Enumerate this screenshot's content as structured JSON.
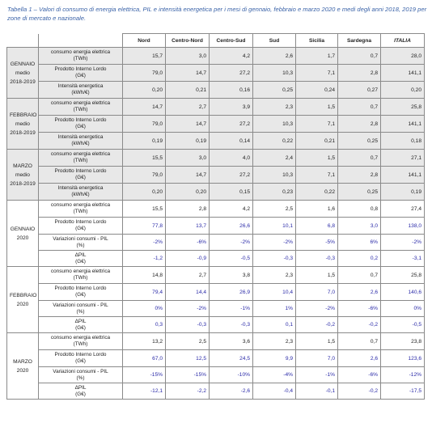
{
  "caption": "Tabella 1 – Valori di consumo di energia elettrica, PIL e intensità energetica per i mesi di gennaio, febbraio e marzo 2020 e medi degli anni 2018, 2019 per zone di mercato e nazionale.",
  "columns": [
    "Nord",
    "Centro-Nord",
    "Centro-Sud",
    "Sud",
    "Sicilia",
    "Sardegna",
    "ITALIA"
  ],
  "avg_blocks": [
    {
      "period": [
        "GENNAIO",
        "medio",
        "2018-2019"
      ],
      "rows": [
        {
          "label": [
            "consumo energia elettrica",
            "(TWh)"
          ],
          "values": [
            "15,7",
            "3,0",
            "4,2",
            "2,6",
            "1,7",
            "0,7",
            "28,0"
          ]
        },
        {
          "label": [
            "Prodotto Interno Lordo",
            "(G€)"
          ],
          "values": [
            "79,0",
            "14,7",
            "27,2",
            "10,3",
            "7,1",
            "2,8",
            "141,1"
          ]
        },
        {
          "label": [
            "Intensità energetica",
            "(kWh/€)"
          ],
          "values": [
            "0,20",
            "0,21",
            "0,16",
            "0,25",
            "0,24",
            "0,27",
            "0,20"
          ]
        }
      ]
    },
    {
      "period": [
        "FEBBRAIO",
        "medio",
        "2018-2019"
      ],
      "rows": [
        {
          "label": [
            "consumo energia elettrica",
            "(TWh)"
          ],
          "values": [
            "14,7",
            "2,7",
            "3,9",
            "2,3",
            "1,5",
            "0,7",
            "25,8"
          ]
        },
        {
          "label": [
            "Prodotto Interno Lordo",
            "(G€)"
          ],
          "values": [
            "79,0",
            "14,7",
            "27,2",
            "10,3",
            "7,1",
            "2,8",
            "141,1"
          ]
        },
        {
          "label": [
            "Intensità energetica",
            "(kWh/€)"
          ],
          "values": [
            "0,19",
            "0,19",
            "0,14",
            "0,22",
            "0,21",
            "0,25",
            "0,18"
          ]
        }
      ]
    },
    {
      "period": [
        "MARZO",
        "medio",
        "2018-2019"
      ],
      "rows": [
        {
          "label": [
            "consumo energia elettrica",
            "(TWh)"
          ],
          "values": [
            "15,5",
            "3,0",
            "4,0",
            "2,4",
            "1,5",
            "0,7",
            "27,1"
          ]
        },
        {
          "label": [
            "Prodotto Interno Lordo",
            "(G€)"
          ],
          "values": [
            "79,0",
            "14,7",
            "27,2",
            "10,3",
            "7,1",
            "2,8",
            "141,1"
          ]
        },
        {
          "label": [
            "Intensità energetica",
            "(kWh/€)"
          ],
          "values": [
            "0,20",
            "0,20",
            "0,15",
            "0,23",
            "0,22",
            "0,25",
            "0,19"
          ]
        }
      ]
    }
  ],
  "month_blocks": [
    {
      "period": [
        "GENNAIO",
        "2020"
      ],
      "rows": [
        {
          "label": [
            "consumo energia elettrica",
            "(TWh)"
          ],
          "values": [
            "15,5",
            "2,8",
            "4,2",
            "2,5",
            "1,6",
            "0,8",
            "27,4"
          ],
          "blue": false
        },
        {
          "label": [
            "Prodotto Interno Lordo",
            "(G€)"
          ],
          "values": [
            "77,8",
            "13,7",
            "26,6",
            "10,1",
            "6,8",
            "3,0",
            "138,0"
          ],
          "blue": true
        },
        {
          "label": [
            "Variazioni consumi - PIL",
            "(%)"
          ],
          "values": [
            "-2%",
            "-6%",
            "-2%",
            "-2%",
            "-5%",
            "6%",
            "-2%"
          ],
          "blue": true
        },
        {
          "label": [
            "ΔPIL",
            "(G€)"
          ],
          "values": [
            "-1,2",
            "-0,9",
            "-0,5",
            "-0,3",
            "-0,3",
            "0,2",
            "-3,1"
          ],
          "blue": true
        }
      ]
    },
    {
      "period": [
        "FEBBRAIO",
        "2020"
      ],
      "rows": [
        {
          "label": [
            "consumo energia elettrica",
            "(TWh)"
          ],
          "values": [
            "14,8",
            "2,7",
            "3,8",
            "2,3",
            "1,5",
            "0,7",
            "25,8"
          ],
          "blue": false
        },
        {
          "label": [
            "Prodotto Interno Lordo",
            "(G€)"
          ],
          "values": [
            "79,4",
            "14,4",
            "26,9",
            "10,4",
            "7,0",
            "2,6",
            "140,6"
          ],
          "blue": true
        },
        {
          "label": [
            "Variazioni consumi - PIL",
            "(%)"
          ],
          "values": [
            "0%",
            "-2%",
            "-1%",
            "1%",
            "-2%",
            "-6%",
            "0%"
          ],
          "blue": true
        },
        {
          "label": [
            "ΔPIL",
            "(G€)"
          ],
          "values": [
            "0,3",
            "-0,3",
            "-0,3",
            "0,1",
            "-0,2",
            "-0,2",
            "-0,5"
          ],
          "blue": true
        }
      ]
    },
    {
      "period": [
        "MARZO",
        "2020"
      ],
      "rows": [
        {
          "label": [
            "consumo energia elettrica",
            "(TWh)"
          ],
          "values": [
            "13,2",
            "2,5",
            "3,6",
            "2,3",
            "1,5",
            "0,7",
            "23,8"
          ],
          "blue": false
        },
        {
          "label": [
            "Prodotto Interno Lordo",
            "(G€)"
          ],
          "values": [
            "67,0",
            "12,5",
            "24,5",
            "9,9",
            "7,0",
            "2,6",
            "123,6"
          ],
          "blue": true
        },
        {
          "label": [
            "Variazioni consumi - PIL",
            "(%)"
          ],
          "values": [
            "-15%",
            "-15%",
            "-10%",
            "-4%",
            "-1%",
            "-6%",
            "-12%"
          ],
          "blue": true
        },
        {
          "label": [
            "ΔPIL",
            "(G€)"
          ],
          "values": [
            "-12,1",
            "-2,2",
            "-2,6",
            "-0,4",
            "-0,1",
            "-0,2",
            "-17,5"
          ],
          "blue": true
        }
      ]
    }
  ]
}
